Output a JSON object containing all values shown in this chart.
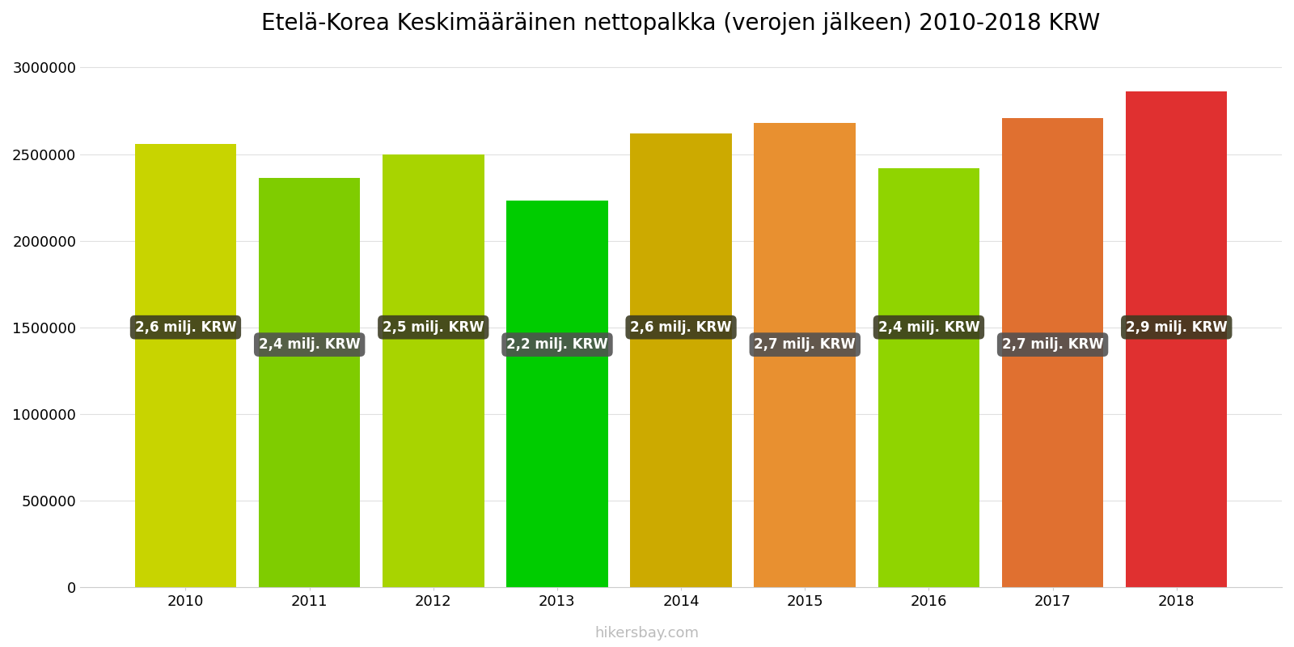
{
  "title": "Etelä-Korea Keskimääräinen nettopalkka (verojen jälkeen) 2010-2018 KRW",
  "years": [
    2010,
    2011,
    2012,
    2013,
    2014,
    2015,
    2016,
    2017,
    2018
  ],
  "values": [
    2560000,
    2360000,
    2500000,
    2230000,
    2620000,
    2680000,
    2420000,
    2710000,
    2860000
  ],
  "bar_colors": [
    "#c8d400",
    "#7fcc00",
    "#a8d400",
    "#00cc00",
    "#ccaa00",
    "#e89030",
    "#90d400",
    "#e07030",
    "#e03030"
  ],
  "labels": [
    "2,6 milj. KRW",
    "2,4 milj. KRW",
    "2,5 milj. KRW",
    "2,2 milj. KRW",
    "2,6 milj. KRW",
    "2,7 milj. KRW",
    "2,4 milj. KRW",
    "2,7 milj. KRW",
    "2,9 milj. KRW"
  ],
  "ylabel_ticks": [
    0,
    500000,
    1000000,
    1500000,
    2000000,
    2500000,
    3000000
  ],
  "ytick_labels": [
    "0",
    "500000",
    "1000000",
    "1500000",
    "2000000",
    "2500000",
    "3000000"
  ],
  "ylim": [
    0,
    3100000
  ],
  "watermark": "hikersbay.com",
  "background_color": "#ffffff",
  "label_box_color_even": "#3a3a20",
  "label_box_color_odd": "#505050",
  "label_text_color": "#ffffff",
  "title_fontsize": 20,
  "tick_fontsize": 13,
  "watermark_color": "#bbbbbb",
  "bar_width": 0.82
}
